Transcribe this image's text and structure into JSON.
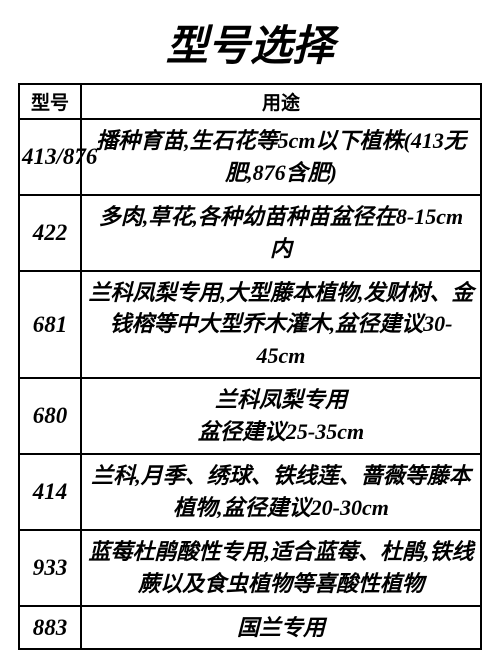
{
  "title": "型号选择",
  "table": {
    "headers": {
      "model": "型号",
      "usage": "用途"
    },
    "rows": [
      {
        "model": "413/876",
        "usage": "播种育苗,生石花等5cm以下植株(413无肥,876含肥)"
      },
      {
        "model": "422",
        "usage": "多肉,草花,各种幼苗种苗盆径在8-15cm内"
      },
      {
        "model": "681",
        "usage": "兰科凤梨专用,大型藤本植物,发财树、金钱榕等中大型乔木灌木,盆径建议30-45cm"
      },
      {
        "model": "680",
        "usage": "兰科凤梨专用\n盆径建议25-35cm"
      },
      {
        "model": "414",
        "usage": "兰科,月季、绣球、铁线莲、蔷薇等藤本植物,盆径建议20-30cm"
      },
      {
        "model": "933",
        "usage": "蓝莓杜鹃酸性专用,适合蓝莓、杜鹃,铁线蕨以及食虫植物等喜酸性植物"
      },
      {
        "model": "883",
        "usage": "国兰专用"
      }
    ]
  },
  "styling": {
    "background_color": "#ffffff",
    "text_color": "#000000",
    "border_color": "#000000",
    "title_fontsize": 42,
    "header_fontsize": 19,
    "cell_fontsize": 22,
    "model_col_width": 62,
    "font_family": "KaiTi",
    "font_style": "italic",
    "font_weight": "bold"
  }
}
